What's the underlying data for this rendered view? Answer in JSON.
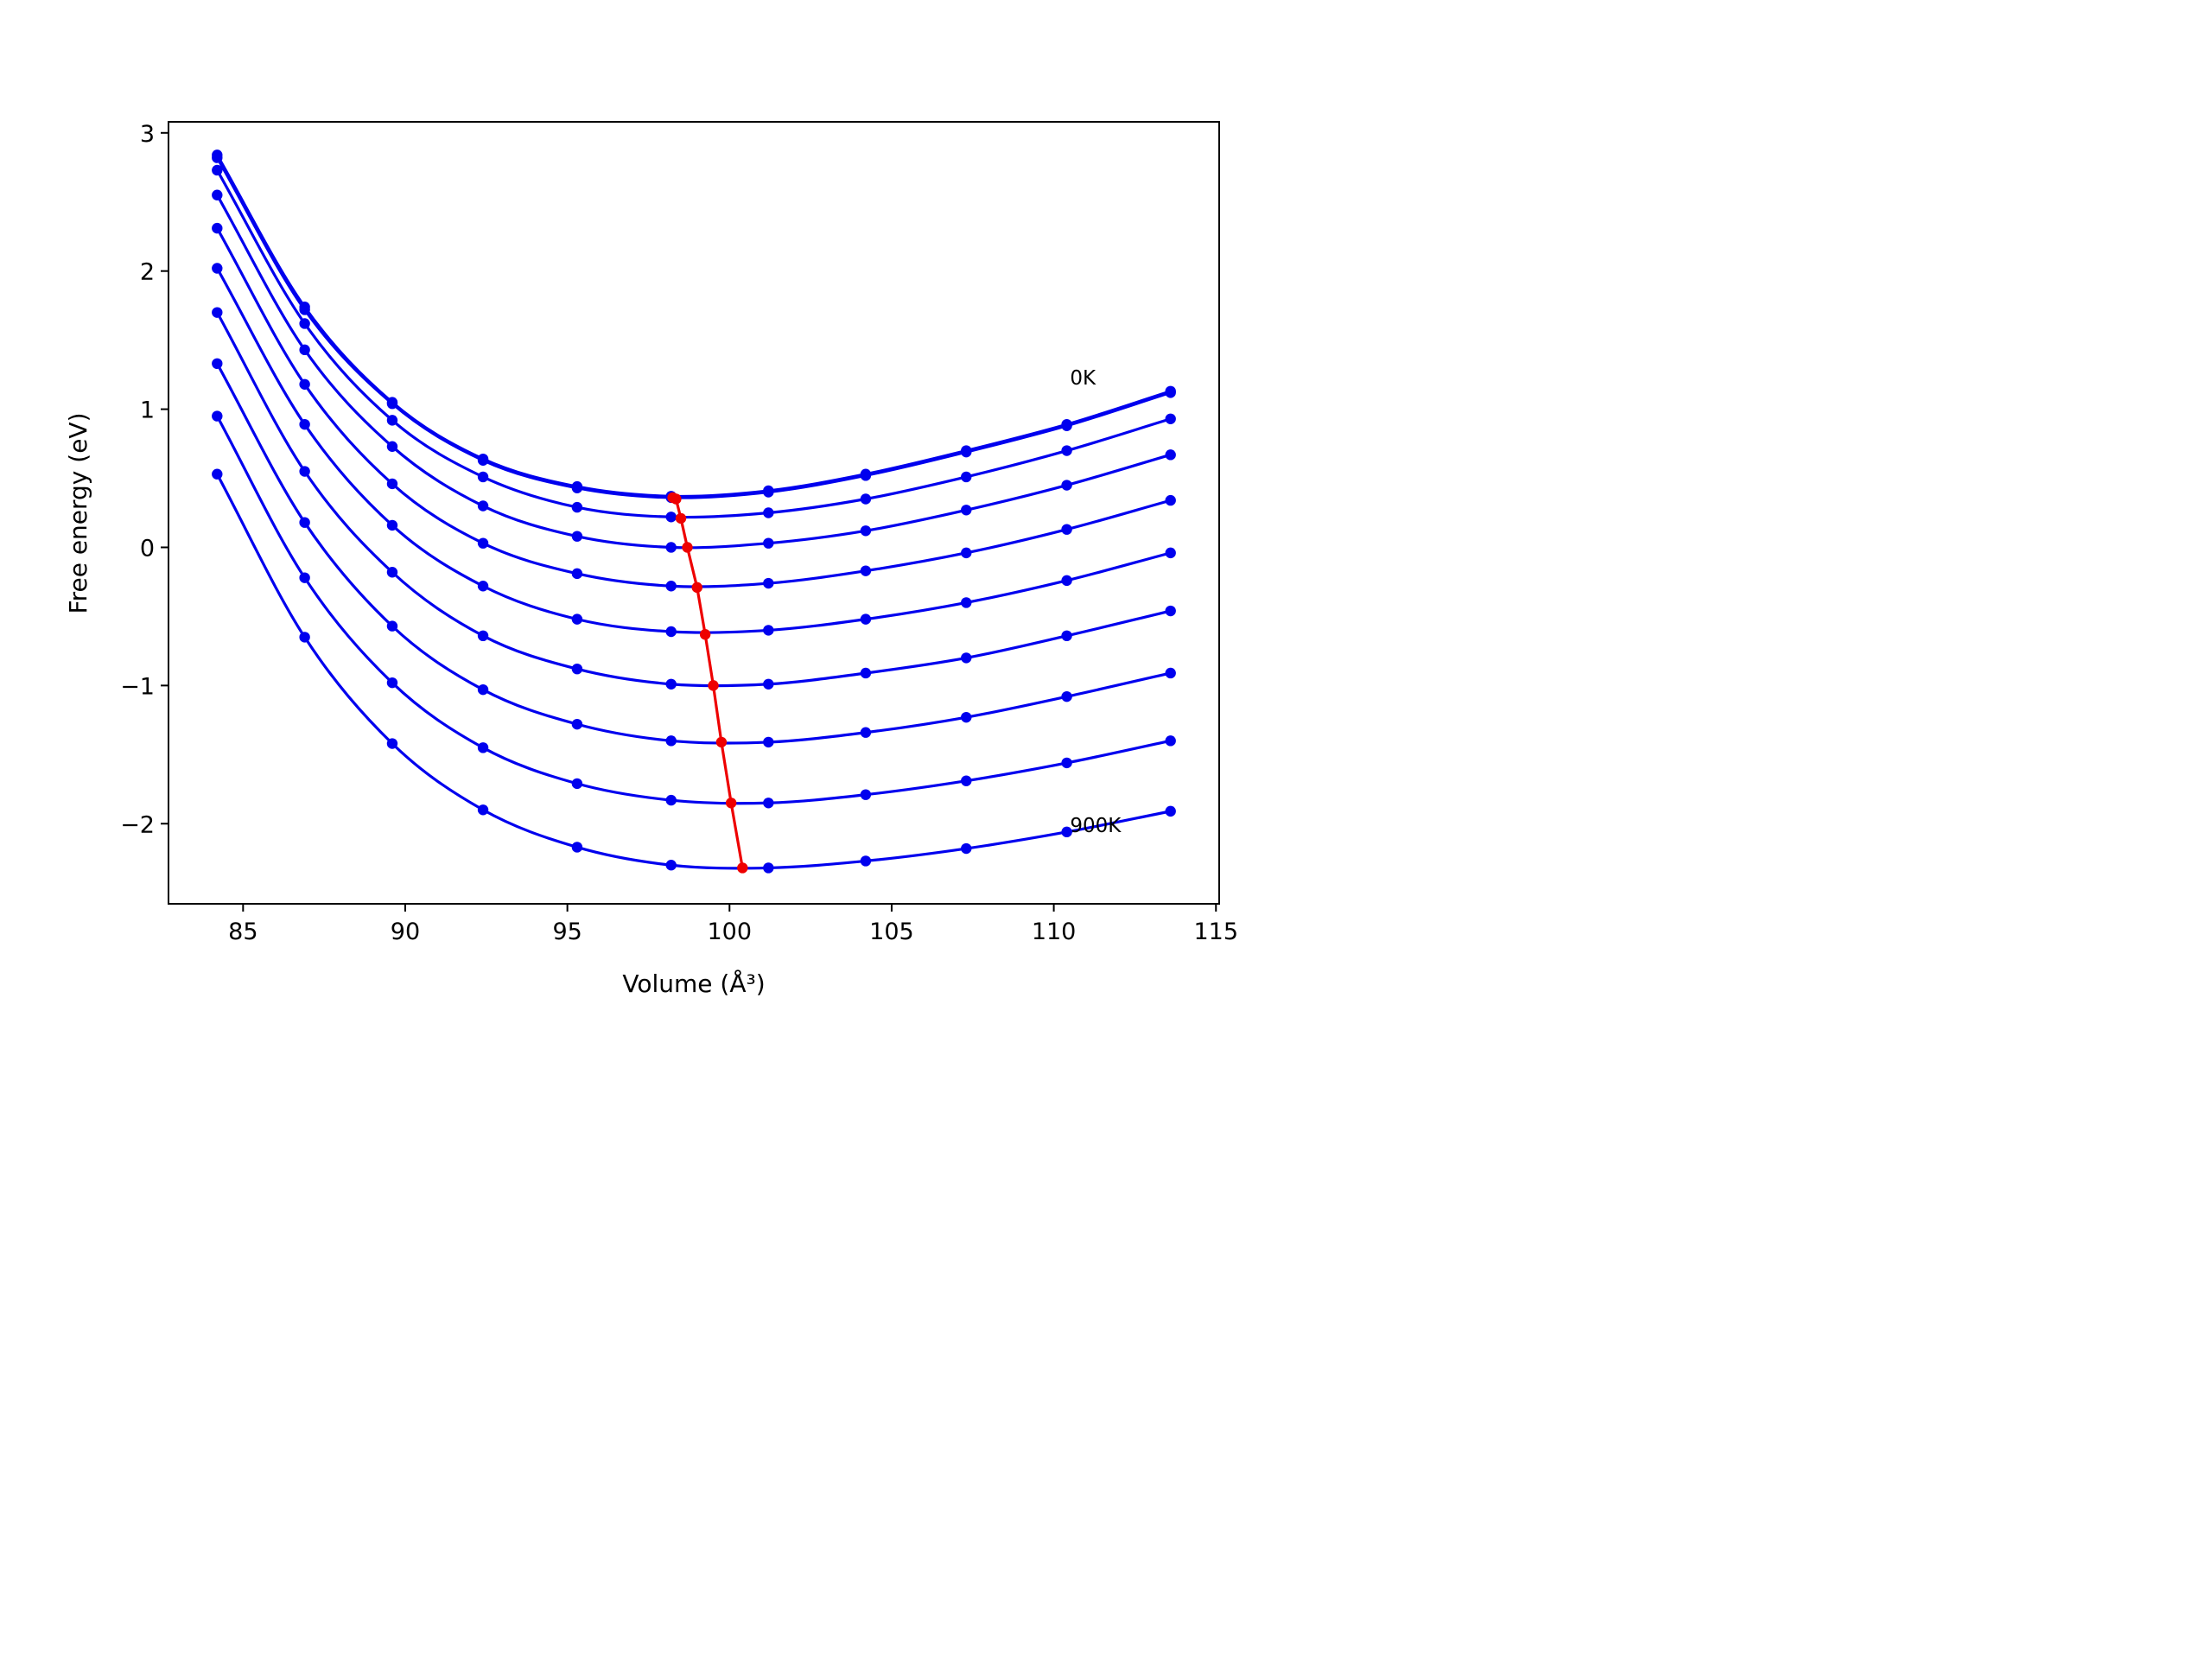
{
  "chart_data": {
    "type": "line",
    "title": "",
    "xlabel": "Volume (Å³)",
    "ylabel": "Free energy (eV)",
    "xlim": [
      82.7,
      115.1
    ],
    "ylim": [
      -2.58,
      3.08
    ],
    "xticks": [
      85,
      90,
      95,
      100,
      105,
      110,
      115
    ],
    "yticks": [
      -2,
      -1,
      0,
      1,
      2,
      3
    ],
    "grid": false,
    "legend": "none",
    "colors": {
      "series": "#0000ee",
      "equilibrium": "#ee0000"
    },
    "x": [
      84.2,
      86.9,
      89.6,
      92.4,
      95.3,
      98.2,
      101.2,
      104.2,
      107.3,
      110.4,
      113.6
    ],
    "series": [
      {
        "values": [
          2.84,
          1.74,
          1.05,
          0.64,
          0.44,
          0.37,
          0.41,
          0.53,
          0.7,
          0.89,
          1.13
        ]
      },
      {
        "values": [
          2.82,
          1.72,
          1.04,
          0.63,
          0.43,
          0.36,
          0.4,
          0.52,
          0.69,
          0.88,
          1.12
        ]
      },
      {
        "values": [
          2.73,
          1.62,
          0.92,
          0.51,
          0.29,
          0.22,
          0.25,
          0.35,
          0.51,
          0.7,
          0.93
        ]
      },
      {
        "values": [
          2.55,
          1.43,
          0.73,
          0.3,
          0.08,
          0.0,
          0.03,
          0.12,
          0.27,
          0.45,
          0.67
        ]
      },
      {
        "values": [
          2.31,
          1.18,
          0.46,
          0.03,
          -0.19,
          -0.28,
          -0.26,
          -0.17,
          -0.04,
          0.13,
          0.34
        ]
      },
      {
        "values": [
          2.02,
          0.89,
          0.16,
          -0.28,
          -0.52,
          -0.61,
          -0.6,
          -0.52,
          -0.4,
          -0.24,
          -0.04
        ]
      },
      {
        "values": [
          1.7,
          0.55,
          -0.18,
          -0.64,
          -0.88,
          -0.99,
          -0.99,
          -0.91,
          -0.8,
          -0.64,
          -0.46
        ]
      },
      {
        "values": [
          1.33,
          0.18,
          -0.57,
          -1.03,
          -1.28,
          -1.4,
          -1.41,
          -1.34,
          -1.23,
          -1.08,
          -0.91
        ]
      },
      {
        "values": [
          0.95,
          -0.22,
          -0.98,
          -1.45,
          -1.71,
          -1.83,
          -1.85,
          -1.79,
          -1.69,
          -1.56,
          -1.4
        ]
      },
      {
        "values": [
          0.53,
          -0.65,
          -1.42,
          -1.9,
          -2.17,
          -2.3,
          -2.32,
          -2.27,
          -2.18,
          -2.06,
          -1.91
        ]
      }
    ],
    "equilibrium": {
      "x": [
        98.25,
        98.35,
        98.5,
        98.7,
        99.0,
        99.25,
        99.5,
        99.75,
        100.05,
        100.4
      ],
      "y": [
        0.36,
        0.35,
        0.21,
        0.0,
        -0.29,
        -0.63,
        -1.0,
        -1.41,
        -1.85,
        -2.32
      ]
    },
    "annotations": [
      {
        "text": "0K",
        "x": 110.5,
        "y": 1.18
      },
      {
        "text": "900K",
        "x": 110.5,
        "y": -2.06
      }
    ]
  }
}
